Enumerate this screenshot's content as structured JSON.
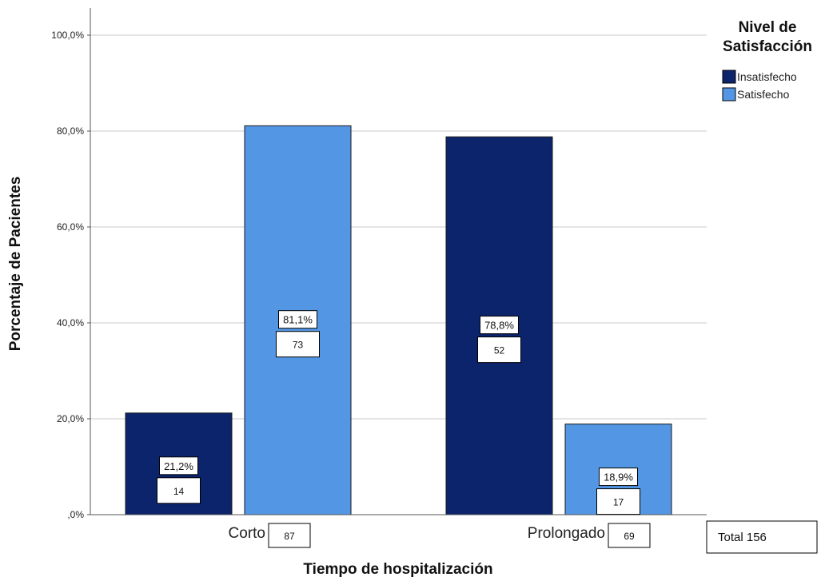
{
  "chart_data": {
    "type": "bar",
    "title": "",
    "xlabel": "Tiempo de hospitalización",
    "ylabel": "Porcentaje de Pacientes",
    "categories": [
      "Corto",
      "Prolongado"
    ],
    "category_counts": [
      "87",
      "69"
    ],
    "ylim": [
      0,
      100
    ],
    "yticks": [
      0,
      20,
      40,
      60,
      80,
      100
    ],
    "ytick_labels": [
      ",0%",
      "20,0%",
      "40,0%",
      "60,0%",
      "80,0%",
      "100,0%"
    ],
    "grid": true,
    "legend": {
      "title": "Nivel de Satisfacción",
      "placement": "top-right",
      "entries": [
        "Insatisfecho",
        "Satisfecho"
      ]
    },
    "series": [
      {
        "name": "Insatisfecho",
        "color": "#0c246b",
        "values": [
          21.2,
          78.8
        ],
        "value_labels": [
          "21,2%",
          "78,8%"
        ],
        "counts": [
          "14",
          "52"
        ]
      },
      {
        "name": "Satisfecho",
        "color": "#5396e3",
        "values": [
          81.1,
          18.9
        ],
        "value_labels": [
          "81,1%",
          "18,9%"
        ],
        "counts": [
          "73",
          "17"
        ]
      }
    ],
    "total_label": "Total 156"
  }
}
